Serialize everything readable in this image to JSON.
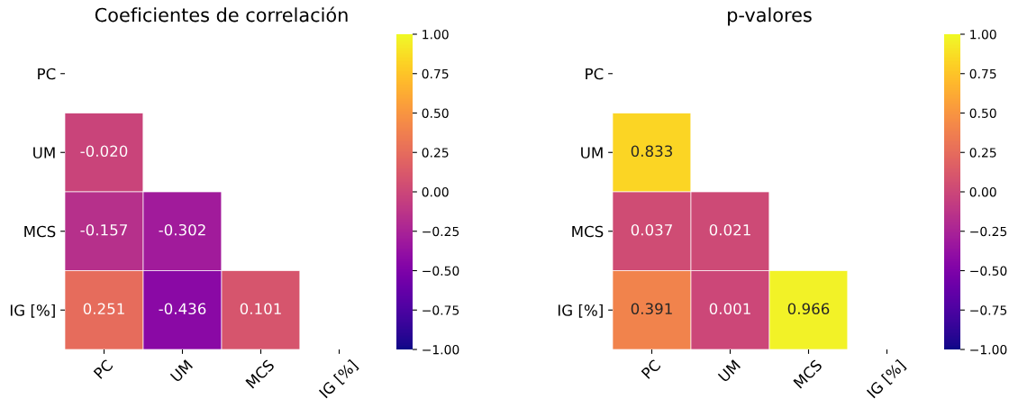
{
  "chart_data": [
    {
      "type": "heatmap",
      "title": "Coeficientes de correlación",
      "categories": [
        "PC",
        "UM",
        "MCS",
        "IG [%]"
      ],
      "y_categories": [
        "PC",
        "UM",
        "MCS",
        "IG [%]"
      ],
      "cells": [
        [
          null,
          null,
          null,
          null
        ],
        [
          -0.02,
          null,
          null,
          null
        ],
        [
          -0.157,
          -0.302,
          null,
          null
        ],
        [
          0.251,
          -0.436,
          0.101,
          null
        ]
      ],
      "cell_labels": [
        [
          null,
          null,
          null,
          null
        ],
        [
          "-0.020",
          null,
          null,
          null
        ],
        [
          "-0.157",
          "-0.302",
          null,
          null
        ],
        [
          "0.251",
          "-0.436",
          "0.101",
          null
        ]
      ],
      "clim": [
        -1,
        1
      ],
      "cticks": [
        {
          "value": -1,
          "label": "−1.00"
        },
        {
          "value": -0.75,
          "label": "−0.75"
        },
        {
          "value": -0.5,
          "label": "−0.50"
        },
        {
          "value": -0.25,
          "label": "−0.25"
        },
        {
          "value": 0,
          "label": "0.00"
        },
        {
          "value": 0.25,
          "label": "0.25"
        },
        {
          "value": 0.5,
          "label": "0.50"
        },
        {
          "value": 0.75,
          "label": "0.75"
        },
        {
          "value": 1,
          "label": "1.00"
        }
      ]
    },
    {
      "type": "heatmap",
      "title": "p-valores",
      "categories": [
        "PC",
        "UM",
        "MCS",
        "IG [%]"
      ],
      "y_categories": [
        "PC",
        "UM",
        "MCS",
        "IG [%]"
      ],
      "cells": [
        [
          null,
          null,
          null,
          null
        ],
        [
          0.833,
          null,
          null,
          null
        ],
        [
          0.037,
          0.021,
          null,
          null
        ],
        [
          0.391,
          0.001,
          0.966,
          null
        ]
      ],
      "cell_labels": [
        [
          null,
          null,
          null,
          null
        ],
        [
          "0.833",
          null,
          null,
          null
        ],
        [
          "0.037",
          "0.021",
          null,
          null
        ],
        [
          "0.391",
          "0.001",
          "0.966",
          null
        ]
      ],
      "clim": [
        -1,
        1
      ],
      "cticks": [
        {
          "value": -1,
          "label": "−1.00"
        },
        {
          "value": -0.75,
          "label": "−0.75"
        },
        {
          "value": -0.5,
          "label": "−0.50"
        },
        {
          "value": -0.25,
          "label": "−0.25"
        },
        {
          "value": 0,
          "label": "0.00"
        },
        {
          "value": 0.25,
          "label": "0.25"
        },
        {
          "value": 0.5,
          "label": "0.50"
        },
        {
          "value": 0.75,
          "label": "0.75"
        },
        {
          "value": 1,
          "label": "1.00"
        }
      ]
    }
  ]
}
